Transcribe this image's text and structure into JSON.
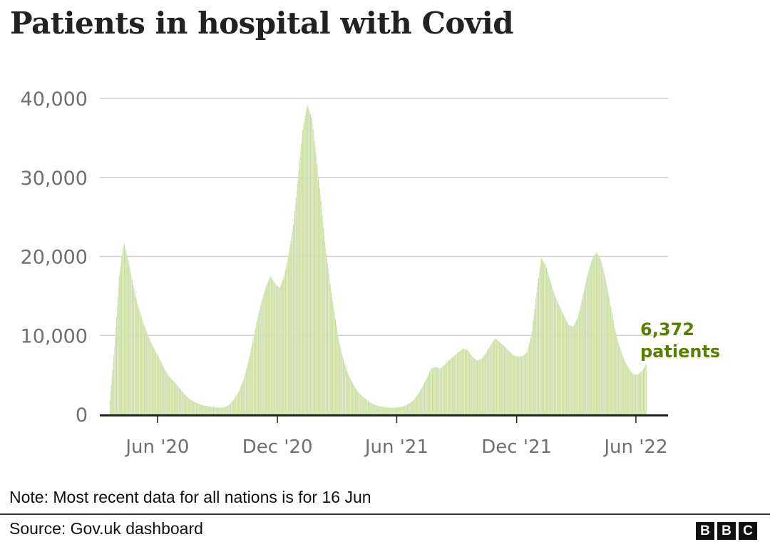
{
  "title": "Patients in hospital with Covid",
  "note": "Note: Most recent data for all nations is for 16 Jun",
  "source": "Source: Gov.uk dashboard",
  "logo": [
    "B",
    "B",
    "C"
  ],
  "colors": {
    "bar": "#c8dc9d",
    "bar_alt": "#dbe8bf",
    "annotation": "#588000",
    "grid": "#d0d0d0",
    "axis": "#222222",
    "tick_text": "#6e6e73"
  },
  "chart_data": {
    "type": "bar",
    "title": "Patients in hospital with Covid",
    "xlabel": "",
    "ylabel": "",
    "ylim": [
      0,
      40000
    ],
    "yticks": [
      0,
      10000,
      20000,
      30000,
      40000
    ],
    "ytick_labels": [
      "0",
      "10,000",
      "20,000",
      "30,000",
      "40,000"
    ],
    "grid": true,
    "x_start": "2020-03-20",
    "x_end": "2022-06-16",
    "xticks": [
      {
        "date": "2020-06-01",
        "label": "Jun '20"
      },
      {
        "date": "2020-12-01",
        "label": "Dec '20"
      },
      {
        "date": "2021-06-01",
        "label": "Jun '21"
      },
      {
        "date": "2021-12-01",
        "label": "Dec '21"
      },
      {
        "date": "2022-06-01",
        "label": "Jun '22"
      }
    ],
    "x_domain": [
      "2020-03-05",
      "2022-07-20"
    ],
    "series": [
      {
        "name": "Patients in hospital",
        "points": [
          [
            "2020-03-20",
            1800
          ],
          [
            "2020-03-27",
            8500
          ],
          [
            "2020-04-03",
            17500
          ],
          [
            "2020-04-10",
            21700
          ],
          [
            "2020-04-17",
            19500
          ],
          [
            "2020-04-24",
            16500
          ],
          [
            "2020-05-01",
            14000
          ],
          [
            "2020-05-08",
            12000
          ],
          [
            "2020-05-15",
            10500
          ],
          [
            "2020-05-22",
            9000
          ],
          [
            "2020-05-29",
            7900
          ],
          [
            "2020-06-05",
            6800
          ],
          [
            "2020-06-12",
            5600
          ],
          [
            "2020-06-19",
            4700
          ],
          [
            "2020-06-26",
            4100
          ],
          [
            "2020-07-03",
            3400
          ],
          [
            "2020-07-10",
            2700
          ],
          [
            "2020-07-17",
            2100
          ],
          [
            "2020-07-24",
            1700
          ],
          [
            "2020-07-31",
            1400
          ],
          [
            "2020-08-07",
            1200
          ],
          [
            "2020-08-14",
            1050
          ],
          [
            "2020-08-21",
            950
          ],
          [
            "2020-08-28",
            900
          ],
          [
            "2020-09-04",
            850
          ],
          [
            "2020-09-11",
            900
          ],
          [
            "2020-09-18",
            1200
          ],
          [
            "2020-09-25",
            1900
          ],
          [
            "2020-10-02",
            2800
          ],
          [
            "2020-10-09",
            4200
          ],
          [
            "2020-10-16",
            6300
          ],
          [
            "2020-10-23",
            8900
          ],
          [
            "2020-10-30",
            11800
          ],
          [
            "2020-11-06",
            14200
          ],
          [
            "2020-11-13",
            16200
          ],
          [
            "2020-11-20",
            17500
          ],
          [
            "2020-11-27",
            16500
          ],
          [
            "2020-12-04",
            16000
          ],
          [
            "2020-12-11",
            17500
          ],
          [
            "2020-12-18",
            20500
          ],
          [
            "2020-12-25",
            24000
          ],
          [
            "2021-01-01",
            30000
          ],
          [
            "2021-01-08",
            36000
          ],
          [
            "2021-01-15",
            39200
          ],
          [
            "2021-01-22",
            37500
          ],
          [
            "2021-01-29",
            32500
          ],
          [
            "2021-02-05",
            27000
          ],
          [
            "2021-02-12",
            21000
          ],
          [
            "2021-02-19",
            16500
          ],
          [
            "2021-02-26",
            12500
          ],
          [
            "2021-03-05",
            9000
          ],
          [
            "2021-03-12",
            6700
          ],
          [
            "2021-03-19",
            5000
          ],
          [
            "2021-03-26",
            3800
          ],
          [
            "2021-04-02",
            2900
          ],
          [
            "2021-04-09",
            2300
          ],
          [
            "2021-04-16",
            1800
          ],
          [
            "2021-04-23",
            1400
          ],
          [
            "2021-04-30",
            1150
          ],
          [
            "2021-05-07",
            1000
          ],
          [
            "2021-05-14",
            900
          ],
          [
            "2021-05-21",
            850
          ],
          [
            "2021-05-28",
            850
          ],
          [
            "2021-06-04",
            900
          ],
          [
            "2021-06-11",
            1000
          ],
          [
            "2021-06-18",
            1300
          ],
          [
            "2021-06-25",
            1700
          ],
          [
            "2021-07-02",
            2400
          ],
          [
            "2021-07-09",
            3400
          ],
          [
            "2021-07-16",
            4500
          ],
          [
            "2021-07-23",
            5800
          ],
          [
            "2021-07-30",
            6000
          ],
          [
            "2021-08-06",
            5800
          ],
          [
            "2021-08-13",
            6300
          ],
          [
            "2021-08-20",
            6900
          ],
          [
            "2021-08-27",
            7400
          ],
          [
            "2021-09-03",
            7900
          ],
          [
            "2021-09-10",
            8300
          ],
          [
            "2021-09-17",
            8100
          ],
          [
            "2021-09-24",
            7300
          ],
          [
            "2021-10-01",
            6800
          ],
          [
            "2021-10-08",
            7000
          ],
          [
            "2021-10-15",
            7800
          ],
          [
            "2021-10-22",
            8800
          ],
          [
            "2021-10-29",
            9600
          ],
          [
            "2021-11-05",
            9100
          ],
          [
            "2021-11-12",
            8600
          ],
          [
            "2021-11-19",
            8000
          ],
          [
            "2021-11-26",
            7500
          ],
          [
            "2021-12-03",
            7300
          ],
          [
            "2021-12-10",
            7400
          ],
          [
            "2021-12-17",
            7900
          ],
          [
            "2021-12-24",
            10500
          ],
          [
            "2021-12-31",
            15500
          ],
          [
            "2022-01-07",
            19800
          ],
          [
            "2022-01-14",
            18800
          ],
          [
            "2022-01-21",
            16800
          ],
          [
            "2022-01-28",
            15000
          ],
          [
            "2022-02-04",
            13700
          ],
          [
            "2022-02-11",
            12400
          ],
          [
            "2022-02-18",
            11300
          ],
          [
            "2022-02-25",
            11100
          ],
          [
            "2022-03-04",
            12300
          ],
          [
            "2022-03-11",
            14800
          ],
          [
            "2022-03-18",
            17500
          ],
          [
            "2022-03-25",
            19500
          ],
          [
            "2022-04-01",
            20500
          ],
          [
            "2022-04-08",
            19600
          ],
          [
            "2022-04-15",
            17200
          ],
          [
            "2022-04-22",
            14200
          ],
          [
            "2022-04-29",
            11000
          ],
          [
            "2022-05-06",
            8700
          ],
          [
            "2022-05-13",
            7000
          ],
          [
            "2022-05-20",
            5900
          ],
          [
            "2022-05-27",
            5100
          ],
          [
            "2022-06-03",
            5000
          ],
          [
            "2022-06-10",
            5500
          ],
          [
            "2022-06-16",
            6372
          ]
        ]
      }
    ],
    "annotation": {
      "value": 6372,
      "lines": [
        "6,372",
        "patients"
      ]
    }
  }
}
